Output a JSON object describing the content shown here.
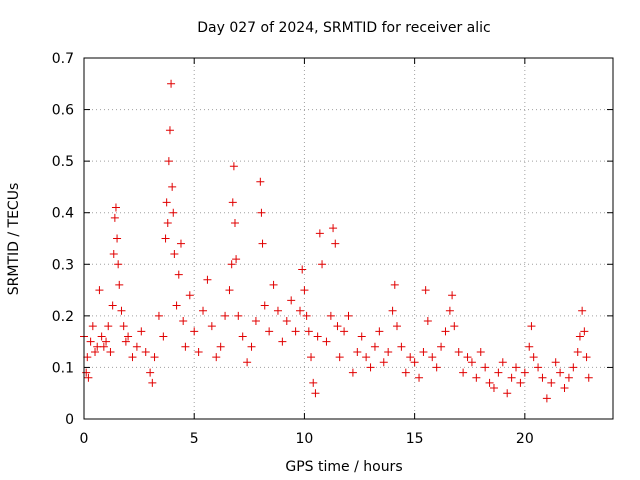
{
  "chart_data": {
    "type": "scatter",
    "title": "Day 027 of 2024, SRMTID for receiver alic",
    "xlabel": "GPS time / hours",
    "ylabel": "SRMTID / TECUs",
    "xlim": [
      0,
      24
    ],
    "ylim": [
      0,
      0.7
    ],
    "x_ticks": [
      0,
      5,
      10,
      15,
      20
    ],
    "x_tick_labels": [
      "0",
      "5",
      "10",
      "15",
      "20"
    ],
    "y_ticks": [
      0,
      0.1,
      0.2,
      0.3,
      0.4,
      0.5,
      0.6,
      0.7
    ],
    "y_tick_labels": [
      "0",
      "0.1",
      "0.2",
      "0.3",
      "0.4",
      "0.5",
      "0.6",
      "0.7"
    ],
    "grid": true,
    "marker": "+",
    "color": "#e00000",
    "series": [
      {
        "name": "SRMTID",
        "x": [
          0.0,
          0.1,
          0.15,
          0.2,
          0.3,
          0.4,
          0.5,
          0.6,
          0.7,
          0.8,
          0.9,
          1.0,
          1.1,
          1.2,
          1.3,
          1.35,
          1.4,
          1.45,
          1.5,
          1.55,
          1.6,
          1.7,
          1.8,
          1.9,
          2.0,
          2.2,
          2.4,
          2.6,
          2.8,
          3.0,
          3.1,
          3.2,
          3.4,
          3.6,
          3.7,
          3.75,
          3.8,
          3.85,
          3.9,
          3.95,
          4.0,
          4.05,
          4.1,
          4.2,
          4.3,
          4.4,
          4.5,
          4.6,
          4.8,
          5.0,
          5.2,
          5.4,
          5.6,
          5.8,
          6.0,
          6.2,
          6.4,
          6.6,
          6.7,
          6.75,
          6.8,
          6.85,
          6.9,
          7.0,
          7.2,
          7.4,
          7.6,
          7.8,
          8.0,
          8.05,
          8.1,
          8.2,
          8.4,
          8.6,
          8.8,
          9.0,
          9.2,
          9.4,
          9.6,
          9.8,
          9.9,
          10.0,
          10.1,
          10.2,
          10.3,
          10.4,
          10.5,
          10.6,
          10.7,
          10.8,
          11.0,
          11.2,
          11.3,
          11.4,
          11.5,
          11.6,
          11.8,
          12.0,
          12.2,
          12.4,
          12.6,
          12.8,
          13.0,
          13.2,
          13.4,
          13.6,
          13.8,
          14.0,
          14.1,
          14.2,
          14.4,
          14.6,
          14.8,
          15.0,
          15.2,
          15.4,
          15.5,
          15.6,
          15.8,
          16.0,
          16.2,
          16.4,
          16.6,
          16.7,
          16.8,
          17.0,
          17.2,
          17.4,
          17.6,
          17.8,
          18.0,
          18.2,
          18.4,
          18.6,
          18.8,
          19.0,
          19.2,
          19.4,
          19.6,
          19.8,
          20.0,
          20.2,
          20.3,
          20.4,
          20.6,
          20.8,
          21.0,
          21.2,
          21.4,
          21.6,
          21.8,
          22.0,
          22.2,
          22.4,
          22.5,
          22.6,
          22.7,
          22.8,
          22.9
        ],
        "y": [
          0.16,
          0.09,
          0.12,
          0.08,
          0.15,
          0.18,
          0.13,
          0.14,
          0.25,
          0.16,
          0.14,
          0.15,
          0.18,
          0.13,
          0.22,
          0.32,
          0.39,
          0.41,
          0.35,
          0.3,
          0.26,
          0.21,
          0.18,
          0.15,
          0.16,
          0.12,
          0.14,
          0.17,
          0.13,
          0.09,
          0.07,
          0.12,
          0.2,
          0.16,
          0.35,
          0.42,
          0.38,
          0.5,
          0.56,
          0.65,
          0.45,
          0.4,
          0.32,
          0.22,
          0.28,
          0.34,
          0.19,
          0.14,
          0.24,
          0.17,
          0.13,
          0.21,
          0.27,
          0.18,
          0.12,
          0.14,
          0.2,
          0.25,
          0.3,
          0.42,
          0.49,
          0.38,
          0.31,
          0.2,
          0.16,
          0.11,
          0.14,
          0.19,
          0.46,
          0.4,
          0.34,
          0.22,
          0.17,
          0.26,
          0.21,
          0.15,
          0.19,
          0.23,
          0.17,
          0.21,
          0.29,
          0.25,
          0.2,
          0.17,
          0.12,
          0.07,
          0.05,
          0.16,
          0.36,
          0.3,
          0.15,
          0.2,
          0.37,
          0.34,
          0.18,
          0.12,
          0.17,
          0.2,
          0.09,
          0.13,
          0.16,
          0.12,
          0.1,
          0.14,
          0.17,
          0.11,
          0.13,
          0.21,
          0.26,
          0.18,
          0.14,
          0.09,
          0.12,
          0.11,
          0.08,
          0.13,
          0.25,
          0.19,
          0.12,
          0.1,
          0.14,
          0.17,
          0.21,
          0.24,
          0.18,
          0.13,
          0.09,
          0.12,
          0.11,
          0.08,
          0.13,
          0.1,
          0.07,
          0.06,
          0.09,
          0.11,
          0.05,
          0.08,
          0.1,
          0.07,
          0.09,
          0.14,
          0.18,
          0.12,
          0.1,
          0.08,
          0.04,
          0.07,
          0.11,
          0.09,
          0.06,
          0.08,
          0.1,
          0.13,
          0.16,
          0.21,
          0.17,
          0.12,
          0.08
        ]
      }
    ]
  }
}
